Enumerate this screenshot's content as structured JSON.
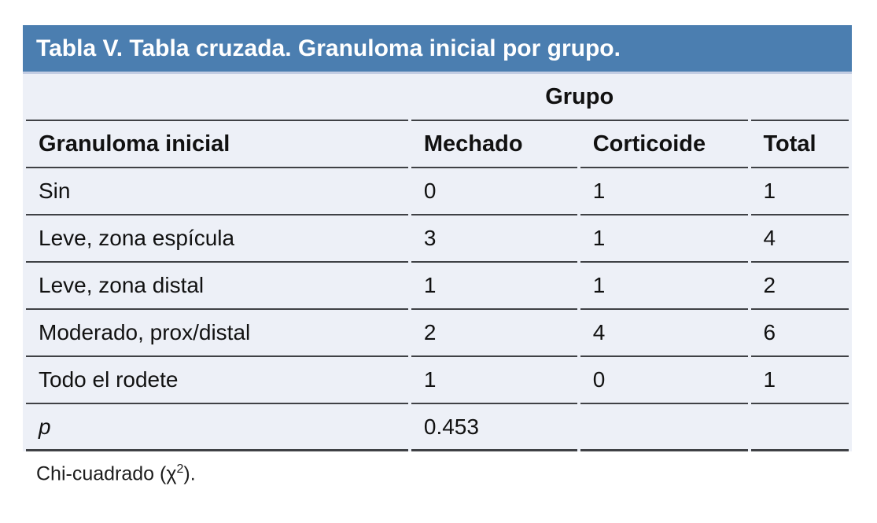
{
  "title": "Tabla V. Tabla cruzada. Granuloma inicial por grupo.",
  "colors": {
    "title_bar_bg": "#4b7eb0",
    "title_text": "#ffffff",
    "table_bg": "#edf0f7",
    "divider": "#3f4145",
    "title_underline": "#c3cde3"
  },
  "table": {
    "group_span_header": "Grupo",
    "columns": {
      "label": "Granuloma inicial",
      "mechado": "Mechado",
      "corticoide": "Corticoide",
      "total": "Total"
    },
    "rows": [
      {
        "label": "Sin",
        "mechado": "0",
        "corticoide": "1",
        "total": "1"
      },
      {
        "label": "Leve, zona espícula",
        "mechado": "3",
        "corticoide": "1",
        "total": "4"
      },
      {
        "label": "Leve, zona distal",
        "mechado": "1",
        "corticoide": "1",
        "total": "2"
      },
      {
        "label": "Moderado, prox/distal",
        "mechado": "2",
        "corticoide": "4",
        "total": "6"
      },
      {
        "label": "Todo el rodete",
        "mechado": "1",
        "corticoide": "0",
        "total": "1"
      },
      {
        "label": "p",
        "mechado": "0.453",
        "corticoide": "",
        "total": ""
      }
    ]
  },
  "footnote": {
    "prefix": "Chi-cuadrado (χ",
    "sup": "2",
    "suffix": ")."
  }
}
